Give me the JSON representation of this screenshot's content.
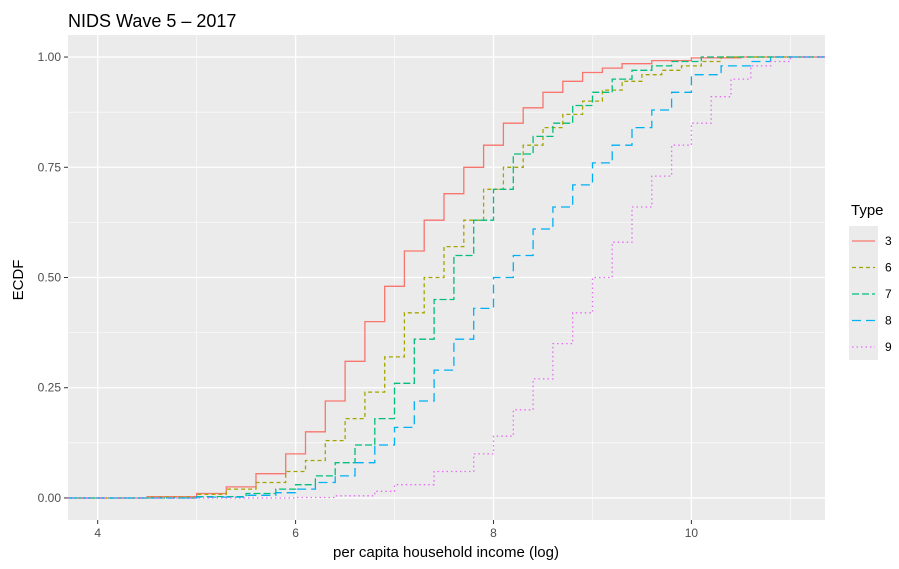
{
  "chart_data": {
    "type": "line",
    "subtype": "step-ecdf",
    "title": "NIDS Wave 5 – 2017",
    "xlabel": "per capita household income (log)",
    "ylabel": "ECDF",
    "xlim": [
      3.7,
      11.35
    ],
    "ylim": [
      -0.05,
      1.05
    ],
    "x_ticks": [
      4,
      6,
      8,
      10
    ],
    "x_tick_labels": [
      "4",
      "6",
      "8",
      "10"
    ],
    "y_ticks": [
      0,
      0.25,
      0.5,
      0.75,
      1
    ],
    "y_tick_labels": [
      "0.00",
      "0.25",
      "0.50",
      "0.75",
      "1.00"
    ],
    "grid": true,
    "panel_background": "#ebebeb",
    "legend": {
      "title": "Type",
      "position": "right"
    },
    "series": [
      {
        "name": "3",
        "color": "#F8766D",
        "dash": "solid",
        "x": [
          3.7,
          4.5,
          5.0,
          5.3,
          5.6,
          5.9,
          6.1,
          6.3,
          6.5,
          6.7,
          6.9,
          7.1,
          7.3,
          7.5,
          7.7,
          7.9,
          8.1,
          8.3,
          8.5,
          8.7,
          8.9,
          9.1,
          9.3,
          9.6,
          10.0,
          10.5,
          11.35
        ],
        "y": [
          0.0,
          0.003,
          0.01,
          0.025,
          0.055,
          0.1,
          0.15,
          0.22,
          0.31,
          0.4,
          0.48,
          0.56,
          0.63,
          0.69,
          0.75,
          0.8,
          0.85,
          0.885,
          0.92,
          0.945,
          0.965,
          0.975,
          0.985,
          0.992,
          0.998,
          1.0,
          1.0
        ]
      },
      {
        "name": "6",
        "color": "#A3A500",
        "dash": "4,3",
        "x": [
          3.7,
          4.5,
          5.0,
          5.3,
          5.6,
          5.9,
          6.1,
          6.3,
          6.5,
          6.7,
          6.9,
          7.1,
          7.3,
          7.5,
          7.7,
          7.9,
          8.1,
          8.3,
          8.5,
          8.7,
          8.9,
          9.1,
          9.3,
          9.5,
          9.7,
          9.9,
          10.1,
          10.3,
          11.35
        ],
        "y": [
          0.0,
          0.002,
          0.008,
          0.02,
          0.035,
          0.06,
          0.085,
          0.13,
          0.18,
          0.24,
          0.32,
          0.42,
          0.5,
          0.57,
          0.63,
          0.7,
          0.75,
          0.8,
          0.84,
          0.87,
          0.9,
          0.925,
          0.945,
          0.96,
          0.97,
          0.98,
          0.99,
          1.0,
          1.0
        ]
      },
      {
        "name": "7",
        "color": "#00BF7D",
        "dash": "7,3",
        "x": [
          3.7,
          4.5,
          5.0,
          5.5,
          5.8,
          6.0,
          6.2,
          6.4,
          6.6,
          6.8,
          7.0,
          7.2,
          7.4,
          7.6,
          7.8,
          8.0,
          8.2,
          8.4,
          8.6,
          8.8,
          9.0,
          9.2,
          9.4,
          9.6,
          9.8,
          10.1,
          11.35
        ],
        "y": [
          0.0,
          0.0,
          0.003,
          0.01,
          0.02,
          0.03,
          0.05,
          0.08,
          0.12,
          0.18,
          0.26,
          0.36,
          0.45,
          0.55,
          0.63,
          0.7,
          0.78,
          0.82,
          0.85,
          0.89,
          0.92,
          0.95,
          0.97,
          0.98,
          0.99,
          1.0,
          1.0
        ]
      },
      {
        "name": "8",
        "color": "#00B0F6",
        "dash": "9,5",
        "x": [
          3.7,
          4.5,
          5.0,
          5.5,
          5.8,
          6.0,
          6.2,
          6.4,
          6.6,
          6.8,
          7.0,
          7.2,
          7.4,
          7.6,
          7.8,
          8.0,
          8.2,
          8.4,
          8.6,
          8.8,
          9.0,
          9.2,
          9.4,
          9.6,
          9.8,
          10.0,
          10.3,
          10.6,
          10.8,
          11.35
        ],
        "y": [
          0.0,
          0.0,
          0.002,
          0.006,
          0.012,
          0.02,
          0.035,
          0.05,
          0.08,
          0.12,
          0.16,
          0.22,
          0.29,
          0.36,
          0.43,
          0.5,
          0.55,
          0.61,
          0.66,
          0.71,
          0.76,
          0.8,
          0.84,
          0.88,
          0.92,
          0.96,
          0.98,
          0.99,
          1.0,
          1.0
        ]
      },
      {
        "name": "9",
        "color": "#E76BF3",
        "dash": "1.5,3",
        "x": [
          3.7,
          5.0,
          5.8,
          6.0,
          6.4,
          6.8,
          7.0,
          7.4,
          7.8,
          8.0,
          8.2,
          8.4,
          8.6,
          8.8,
          9.0,
          9.2,
          9.4,
          9.6,
          9.8,
          10.0,
          10.2,
          10.4,
          10.6,
          10.8,
          11.0,
          11.35
        ],
        "y": [
          0.0,
          0.0,
          0.0,
          0.001,
          0.005,
          0.015,
          0.03,
          0.06,
          0.1,
          0.14,
          0.2,
          0.27,
          0.35,
          0.42,
          0.5,
          0.58,
          0.66,
          0.73,
          0.8,
          0.85,
          0.91,
          0.95,
          0.98,
          0.99,
          1.0,
          1.0
        ]
      }
    ]
  }
}
